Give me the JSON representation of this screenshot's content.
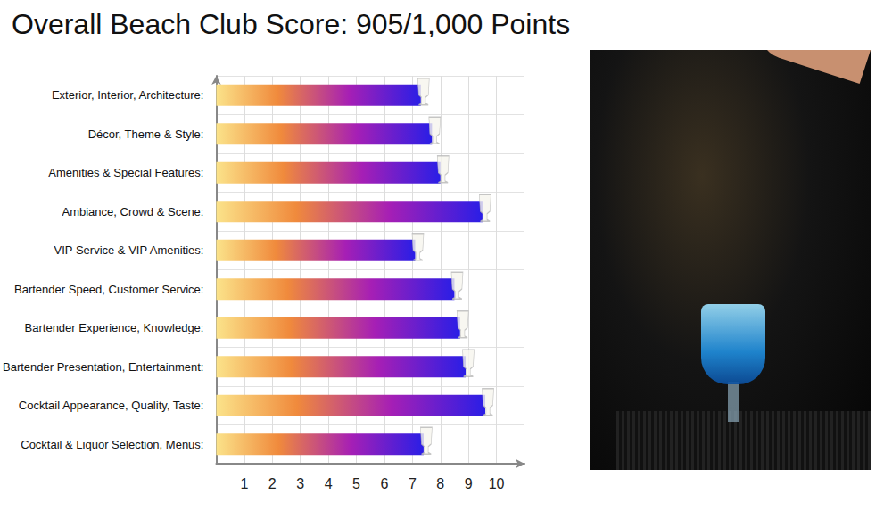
{
  "chart_data": {
    "type": "bar",
    "title": "Overall Beach Club Score: 905/1,000 Points",
    "orientation": "horizontal",
    "categories": [
      "Exterior, Interior, Architecture:",
      "Décor, Theme & Style:",
      "Amenities & Special Features:",
      "Ambiance, Crowd & Scene:",
      "VIP Service & VIP Amenities:",
      "Bartender Speed, Customer Service:",
      "Bartender Experience, Knowledge:",
      "Bartender Presentation, Entertainment:",
      "Cocktail Appearance, Quality, Taste:",
      "Cocktail & Liquor Selection, Menus:"
    ],
    "values": [
      7.3,
      7.7,
      8.0,
      9.5,
      7.1,
      8.5,
      8.7,
      8.9,
      9.6,
      7.4
    ],
    "xlim": [
      0,
      11
    ],
    "xticks": [
      1,
      2,
      3,
      4,
      5,
      6,
      7,
      8,
      9,
      10
    ],
    "grid": true
  }
}
